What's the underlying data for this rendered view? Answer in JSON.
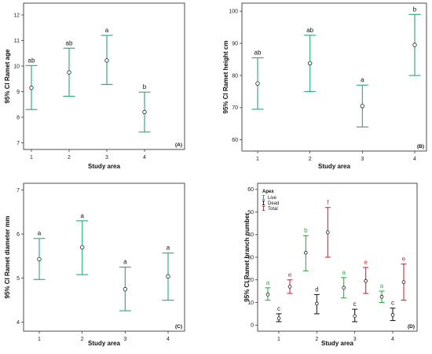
{
  "chart_data": [
    {
      "panel": "(A)",
      "type": "errorbar",
      "xlabel": "Study area",
      "ylabel": "95% CI Ramet age",
      "categories": [
        "1",
        "2",
        "3",
        "4"
      ],
      "ylim": [
        6.8,
        12.4
      ],
      "yticks": [
        "7",
        "8",
        "9",
        "10",
        "11",
        "12"
      ],
      "mean": [
        9.15,
        9.75,
        10.22,
        8.2
      ],
      "lower": [
        8.3,
        8.82,
        9.28,
        7.42
      ],
      "upper": [
        10.02,
        10.7,
        11.2,
        8.98
      ],
      "letters": [
        "ab",
        "ab",
        "a",
        "b"
      ],
      "color": "#27a67e"
    },
    {
      "panel": "(B)",
      "type": "errorbar",
      "xlabel": "Study area",
      "ylabel": "95% CI Ramet height cm",
      "categories": [
        "1",
        "2",
        "3",
        "4"
      ],
      "ylim": [
        57,
        102
      ],
      "yticks": [
        "60",
        "70",
        "80",
        "90",
        "100"
      ],
      "mean": [
        77.5,
        83.8,
        70.5,
        89.5
      ],
      "lower": [
        69.5,
        75,
        64,
        80
      ],
      "upper": [
        85.5,
        92.5,
        77,
        99
      ],
      "letters": [
        "ab",
        "ab",
        "a",
        "b"
      ],
      "color": "#27a67e"
    },
    {
      "panel": "(C)",
      "type": "errorbar",
      "xlabel": "Study area",
      "ylabel": "95% CI Ramet diameter mm",
      "categories": [
        "1",
        "2",
        "3",
        "4"
      ],
      "ylim": [
        3.85,
        7.1
      ],
      "yticks": [
        "4",
        "5",
        "6",
        "7"
      ],
      "mean": [
        5.43,
        5.7,
        4.75,
        5.04
      ],
      "lower": [
        4.97,
        5.08,
        4.26,
        4.5
      ],
      "upper": [
        5.9,
        6.3,
        5.25,
        5.57
      ],
      "letters": [
        "a",
        "a",
        "a",
        "a"
      ],
      "color": "#27a67e"
    },
    {
      "panel": "(D)",
      "type": "errorbar",
      "xlabel": "Study area",
      "ylabel": "95% CI Ramet branch number",
      "categories": [
        "1",
        "2",
        "3",
        "4"
      ],
      "ylim": [
        -2,
        62
      ],
      "yticks": [
        "0",
        "10",
        "20",
        "30",
        "40",
        "50",
        "60"
      ],
      "legend": {
        "title": "Apex",
        "position": "top-left"
      },
      "series": [
        {
          "name": "Live",
          "color": "#2db04a",
          "mean": [
            13.5,
            32,
            16.5,
            12.5
          ],
          "lower": [
            11,
            24,
            12,
            10
          ],
          "upper": [
            16.5,
            39.5,
            21,
            15
          ],
          "letters": [
            "a",
            "b",
            "a",
            "a"
          ]
        },
        {
          "name": "Dead",
          "color": "#222222",
          "mean": [
            3,
            9.5,
            4,
            4.5
          ],
          "lower": [
            1.5,
            5,
            1.5,
            2
          ],
          "upper": [
            5,
            13.5,
            7,
            7.5
          ],
          "letters": [
            "c",
            "d",
            "c",
            "c"
          ]
        },
        {
          "name": "Total",
          "color": "#e0262b",
          "mean": [
            17,
            41,
            19.5,
            19
          ],
          "lower": [
            14,
            30,
            14,
            11
          ],
          "upper": [
            20,
            52,
            25.5,
            27
          ],
          "letters": [
            "e",
            "f",
            "e",
            "e"
          ]
        }
      ]
    }
  ]
}
